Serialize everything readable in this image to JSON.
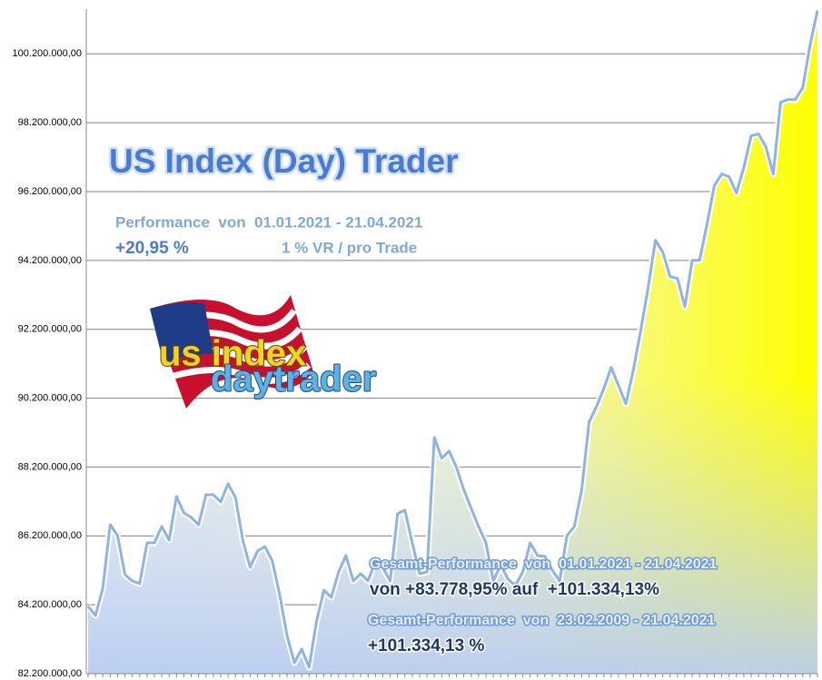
{
  "chart_data": {
    "type": "area",
    "title": "US Index (Day) Trader",
    "subtitle": "Performance  von  01.01.2021 - 21.04.2021",
    "performance": "+20,95 %",
    "risk": "1 % VR / pro Trade",
    "logo": [
      "us index",
      "daytrader"
    ],
    "notes": [
      "Gesamt-Performance  von  01.01.2021 - 21.04.2021",
      "von +83.778,95% auf  +101.334,13%",
      "Gesamt-Performance  von  23.02.2009 - 21.04.2021",
      "+101.334,13 %"
    ],
    "color": "#8fb4e3",
    "fill": "#ffff00",
    "grid": true,
    "ylim": [
      82200000,
      101500000
    ],
    "yticks": [
      {
        "value": 82200000,
        "label": "82.200.000,00"
      },
      {
        "value": 84200000,
        "label": "84.200.000,00"
      },
      {
        "value": 86200000,
        "label": "86.200.000,00"
      },
      {
        "value": 88200000,
        "label": "88.200.000,00"
      },
      {
        "value": 90200000,
        "label": "90.200.000,00"
      },
      {
        "value": 92200000,
        "label": "92.200.000,00"
      },
      {
        "value": 94200000,
        "label": "94.200.000,00"
      },
      {
        "value": 96200000,
        "label": "96.200.000,00"
      },
      {
        "value": 98200000,
        "label": "98.200.000,00"
      },
      {
        "value": 100200000,
        "label": "100.200.000,00"
      }
    ],
    "values": [
      84153000,
      83889000,
      84680000,
      86527000,
      86211000,
      85076000,
      84891000,
      84812000,
      85999000,
      85999000,
      86474000,
      86079000,
      87345000,
      86870000,
      86738000,
      86527000,
      87398000,
      87398000,
      87187000,
      87715000,
      87319000,
      86079000,
      85287000,
      85762000,
      85894000,
      85472000,
      84496000,
      83308000,
      82517000,
      82912000,
      82385000,
      83704000,
      84627000,
      84416000,
      85155000,
      85630000,
      84891000,
      85102000,
      84891000,
      85472000,
      85287000,
      84891000,
      86844000,
      86949000,
      85999000,
      85102000,
      85155000,
      89060000,
      88453000,
      88664000,
      88189000,
      87530000,
      87002000,
      86474000,
      85999000,
      84891000,
      85366000,
      84944000,
      84759000,
      85155000,
      85999000,
      85630000,
      85604000,
      85208000,
      84891000,
      86211000,
      86474000,
      87530000,
      89509000,
      89957000,
      90485000,
      91092000,
      90564000,
      90036000,
      91013000,
      92147000,
      93387000,
      94786000,
      94443000,
      93730000,
      93678000,
      92860000,
      94205000,
      94205000,
      95234000,
      96369000,
      96712000,
      96633000,
      96158000,
      96897000,
      97820000,
      97873000,
      97503000,
      96712000,
      98796000,
      98875000,
      98875000,
      99218000,
      100459000,
      101461000
    ]
  }
}
